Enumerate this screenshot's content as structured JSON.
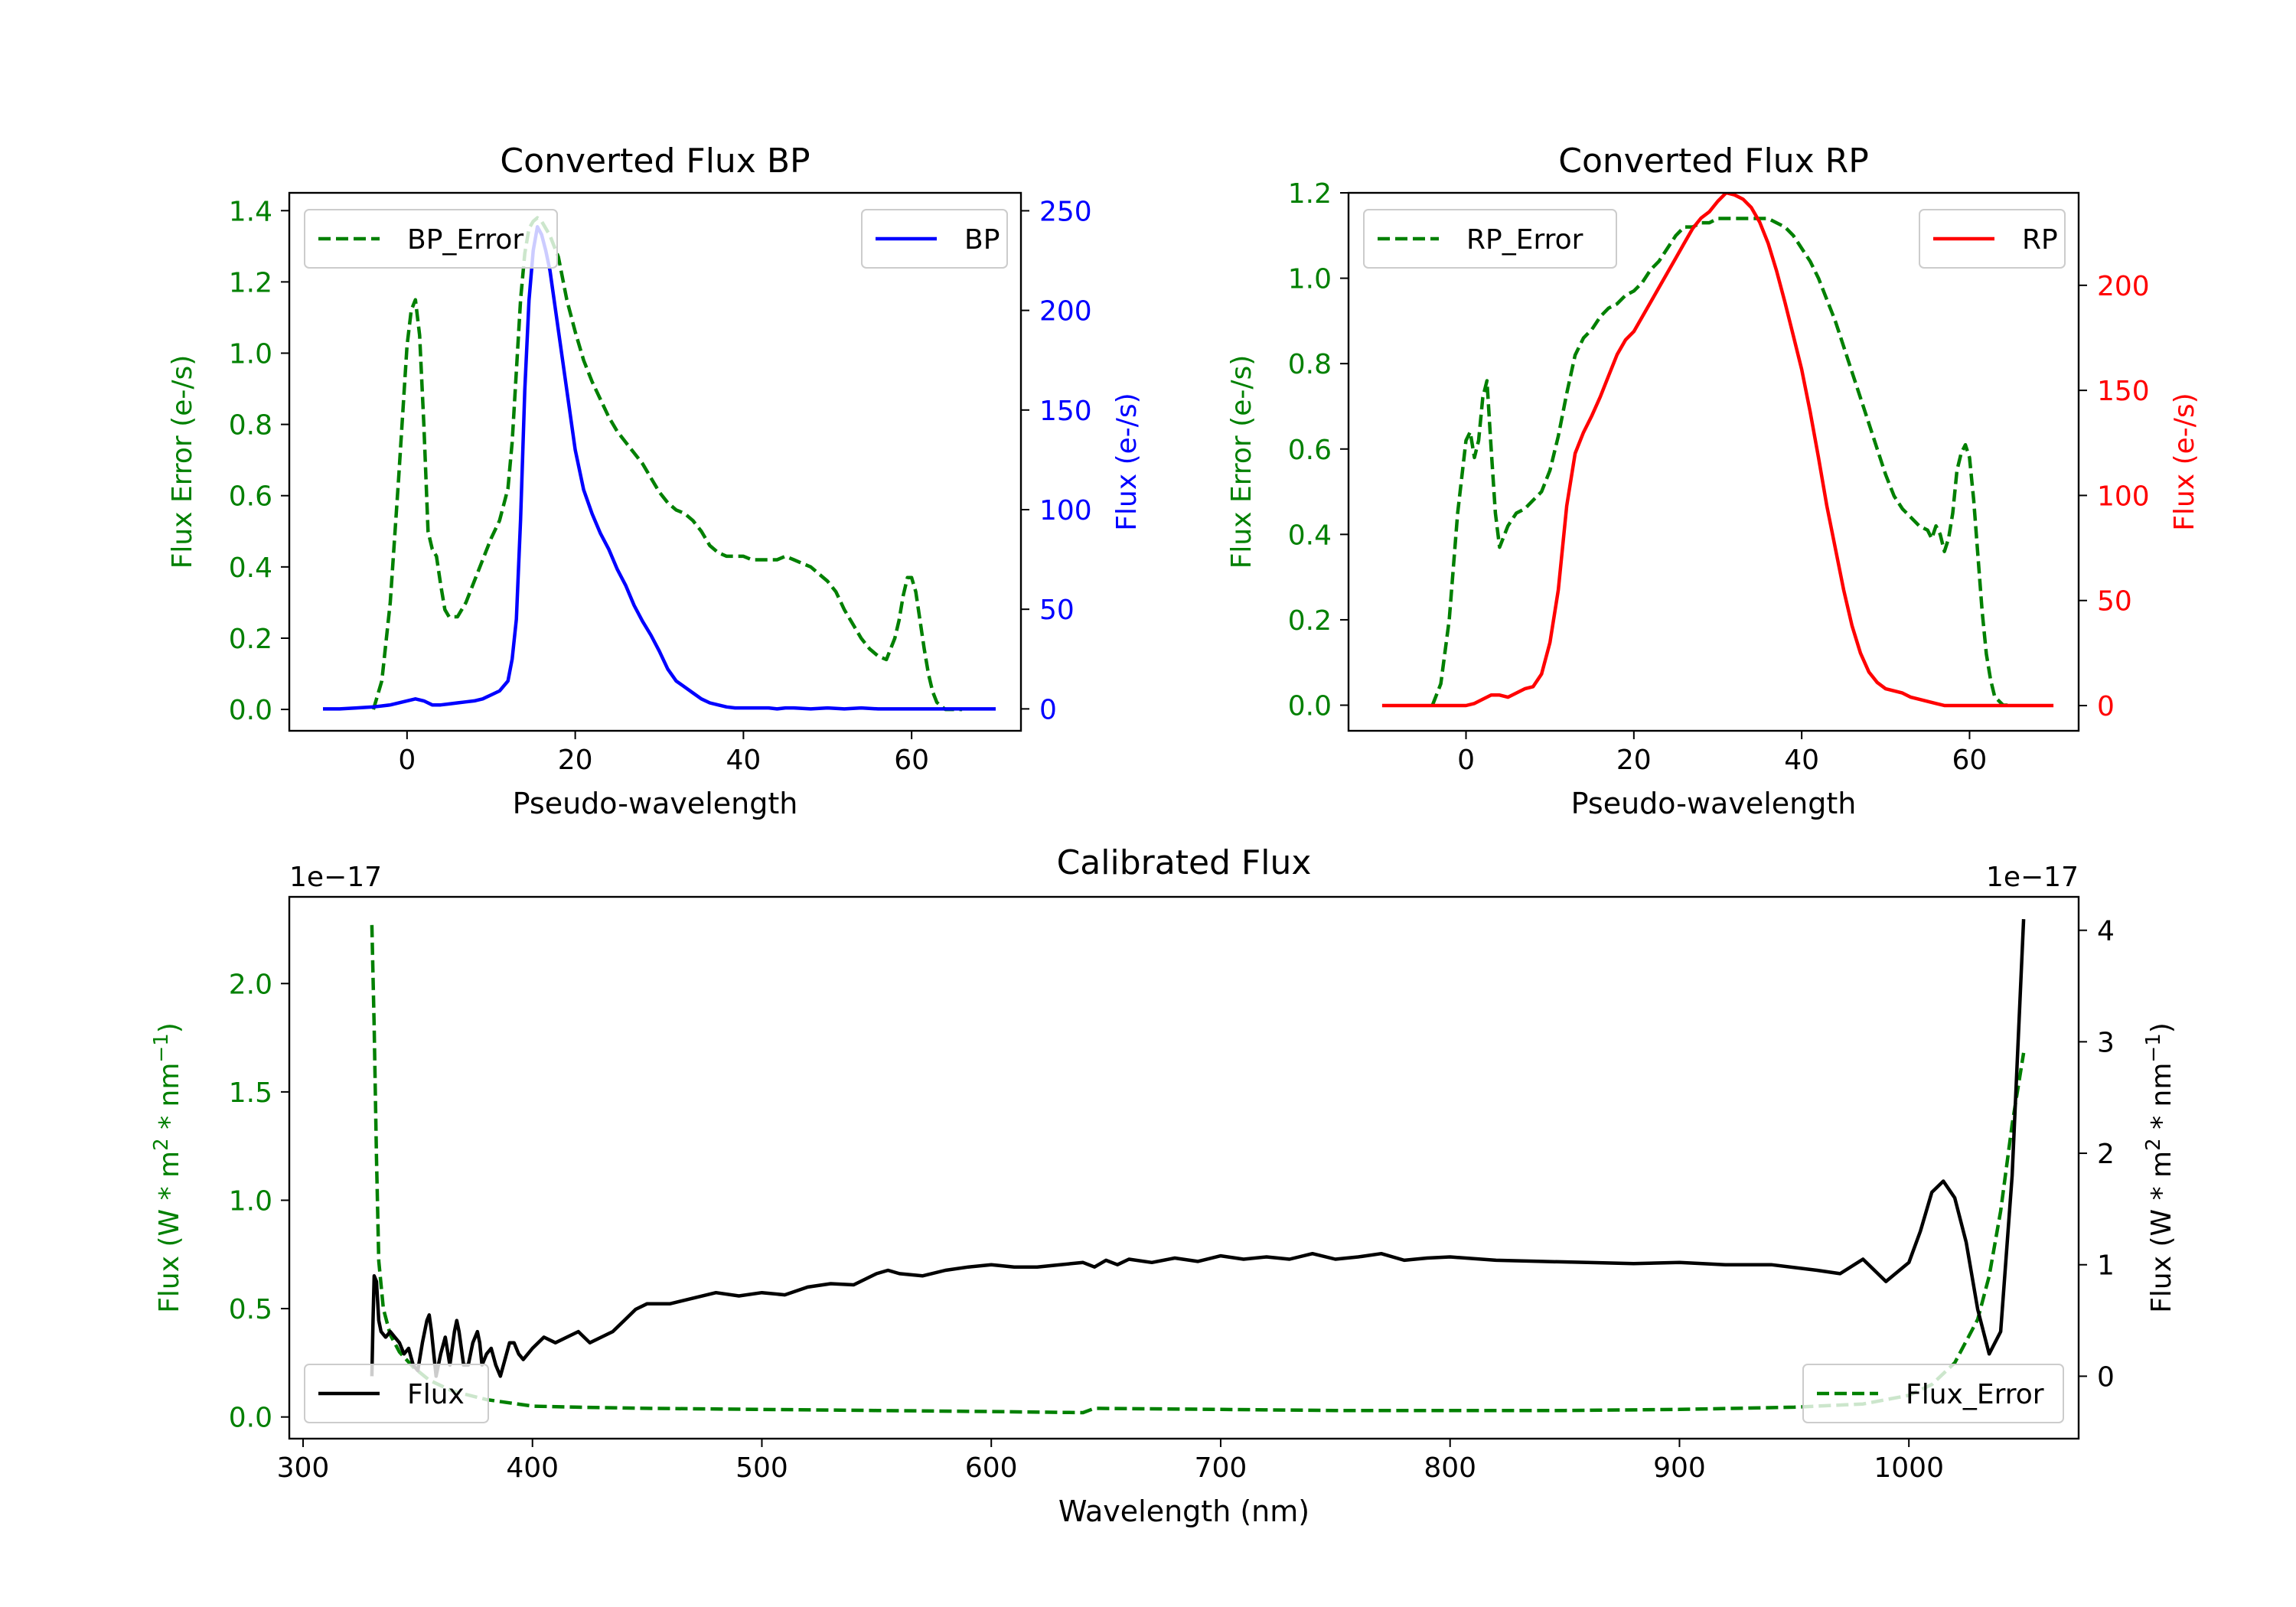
{
  "colors": {
    "green": "#008000",
    "blue": "#0000ff",
    "red": "#ff0000",
    "black": "#000000"
  },
  "chart_data": [
    {
      "type": "line",
      "title": "Converted Flux BP",
      "xlabel": "Pseudo-wavelength",
      "ylabel_left": "Flux Error (e-/s)",
      "ylabel_right": "Flux (e-/s)",
      "xlim": [
        -14,
        73
      ],
      "ylim_left": [
        -0.06,
        1.45
      ],
      "ylim_right": [
        -11,
        259
      ],
      "xticks": [
        0,
        20,
        40,
        60
      ],
      "yticks_left": [
        0.0,
        0.2,
        0.4,
        0.6,
        0.8,
        1.0,
        1.2,
        1.4
      ],
      "yticks_right": [
        0,
        50,
        100,
        150,
        200,
        250
      ],
      "legend_left": "BP_Error",
      "legend_right": "BP",
      "series": [
        {
          "name": "BP_Error",
          "axis": "left",
          "style": "dashed",
          "color": "green",
          "x": [
            -4,
            -3,
            -2,
            -1,
            0,
            0.5,
            1,
            1.5,
            2,
            2.5,
            3,
            3.5,
            4,
            4.5,
            5,
            6,
            7,
            8,
            9,
            10,
            11,
            12,
            12.5,
            13,
            13.5,
            14,
            14.5,
            15,
            15.5,
            16,
            17,
            18,
            19,
            20,
            21,
            22,
            23,
            24,
            25,
            26,
            27,
            28,
            29,
            30,
            31,
            32,
            33,
            34,
            35,
            36,
            37,
            38,
            39,
            40,
            41,
            42,
            43,
            44,
            45,
            46,
            47,
            48,
            49,
            50,
            51,
            52,
            53,
            54,
            55,
            56,
            57,
            58,
            58.5,
            59,
            59.5,
            60,
            60.5,
            61,
            61.5,
            62,
            62.5,
            63,
            63.5,
            64,
            65,
            66
          ],
          "y": [
            0.0,
            0.08,
            0.3,
            0.65,
            1.02,
            1.12,
            1.15,
            1.05,
            0.8,
            0.5,
            0.45,
            0.43,
            0.35,
            0.28,
            0.26,
            0.26,
            0.3,
            0.36,
            0.42,
            0.48,
            0.53,
            0.62,
            0.75,
            0.95,
            1.15,
            1.28,
            1.35,
            1.37,
            1.38,
            1.37,
            1.33,
            1.27,
            1.15,
            1.06,
            0.98,
            0.92,
            0.87,
            0.82,
            0.78,
            0.75,
            0.72,
            0.69,
            0.65,
            0.61,
            0.58,
            0.56,
            0.55,
            0.53,
            0.5,
            0.46,
            0.44,
            0.43,
            0.43,
            0.43,
            0.42,
            0.42,
            0.42,
            0.42,
            0.43,
            0.42,
            0.41,
            0.4,
            0.38,
            0.36,
            0.33,
            0.28,
            0.24,
            0.2,
            0.17,
            0.15,
            0.14,
            0.2,
            0.25,
            0.32,
            0.37,
            0.37,
            0.33,
            0.25,
            0.17,
            0.1,
            0.05,
            0.02,
            0.01,
            0.0,
            0.0,
            0.0
          ]
        },
        {
          "name": "BP",
          "axis": "right",
          "style": "solid",
          "color": "blue",
          "x": [
            -10,
            -8,
            -6,
            -4,
            -2,
            0,
            1,
            2,
            3,
            4,
            5,
            6,
            7,
            8,
            9,
            10,
            11,
            12,
            12.5,
            13,
            13.5,
            14,
            14.5,
            15,
            15.5,
            16,
            16.5,
            17,
            17.5,
            18,
            19,
            20,
            21,
            22,
            23,
            24,
            25,
            26,
            27,
            28,
            29,
            30,
            31,
            32,
            33,
            34,
            35,
            36,
            37,
            38,
            39,
            40,
            41,
            42,
            43,
            44,
            45,
            46,
            48,
            50,
            52,
            54,
            56,
            58,
            60,
            62,
            64,
            66,
            68,
            70
          ],
          "y": [
            0,
            0,
            0.5,
            1,
            2,
            4,
            5,
            4,
            2,
            2,
            2.5,
            3,
            3.5,
            4,
            5,
            7,
            9,
            14,
            25,
            45,
            95,
            160,
            205,
            230,
            242,
            238,
            230,
            220,
            205,
            190,
            160,
            130,
            110,
            98,
            88,
            80,
            70,
            62,
            52,
            44,
            37,
            29,
            20,
            14,
            11,
            8,
            5,
            3,
            2,
            1,
            0.5,
            0.5,
            0.5,
            0.5,
            0.5,
            0,
            0.5,
            0.5,
            0,
            0.5,
            0,
            0.5,
            0,
            0,
            0,
            0,
            0,
            0,
            0,
            0
          ]
        }
      ]
    },
    {
      "type": "line",
      "title": "Converted Flux RP",
      "xlabel": "Pseudo-wavelength",
      "ylabel_left": "Flux Error (e-/s)",
      "ylabel_right": "Flux (e-/s)",
      "xlim": [
        -14,
        73
      ],
      "ylim_left": [
        -0.06,
        1.2
      ],
      "ylim_right": [
        -12,
        244
      ],
      "xticks": [
        0,
        20,
        40,
        60
      ],
      "yticks_left": [
        0.0,
        0.2,
        0.4,
        0.6,
        0.8,
        1.0,
        1.2
      ],
      "yticks_right": [
        0,
        50,
        100,
        150,
        200
      ],
      "legend_left": "RP_Error",
      "legend_right": "RP",
      "series": [
        {
          "name": "RP_Error",
          "axis": "left",
          "style": "dashed",
          "color": "green",
          "x": [
            -4,
            -3,
            -2,
            -1,
            0,
            0.5,
            1,
            1.5,
            2,
            2.5,
            3,
            3.5,
            4,
            5,
            6,
            7,
            8,
            9,
            10,
            11,
            12,
            13,
            14,
            15,
            16,
            17,
            18,
            19,
            20,
            21,
            22,
            23,
            24,
            25,
            26,
            27,
            28,
            29,
            30,
            31,
            32,
            33,
            34,
            35,
            36,
            37,
            38,
            39,
            40,
            41,
            42,
            43,
            44,
            45,
            46,
            47,
            48,
            49,
            50,
            51,
            52,
            53,
            54,
            55,
            55.5,
            56,
            56.5,
            57,
            57.5,
            58,
            58.5,
            59,
            59.5,
            60,
            60.5,
            61,
            61.5,
            62,
            62.5,
            63,
            64,
            65
          ],
          "y": [
            0.0,
            0.05,
            0.2,
            0.45,
            0.62,
            0.64,
            0.58,
            0.62,
            0.72,
            0.76,
            0.6,
            0.45,
            0.37,
            0.42,
            0.45,
            0.46,
            0.48,
            0.5,
            0.55,
            0.63,
            0.73,
            0.82,
            0.86,
            0.88,
            0.91,
            0.93,
            0.94,
            0.96,
            0.97,
            0.99,
            1.02,
            1.04,
            1.07,
            1.1,
            1.12,
            1.12,
            1.13,
            1.13,
            1.14,
            1.14,
            1.14,
            1.14,
            1.14,
            1.14,
            1.14,
            1.13,
            1.12,
            1.1,
            1.07,
            1.04,
            1.0,
            0.95,
            0.9,
            0.84,
            0.78,
            0.72,
            0.66,
            0.6,
            0.54,
            0.49,
            0.46,
            0.44,
            0.42,
            0.41,
            0.39,
            0.42,
            0.4,
            0.36,
            0.39,
            0.45,
            0.55,
            0.59,
            0.61,
            0.58,
            0.48,
            0.35,
            0.22,
            0.12,
            0.06,
            0.02,
            0.0,
            0.0
          ]
        },
        {
          "name": "RP",
          "axis": "right",
          "style": "solid",
          "color": "red",
          "x": [
            -10,
            -8,
            -6,
            -4,
            -2,
            0,
            1,
            2,
            3,
            4,
            5,
            6,
            7,
            8,
            9,
            10,
            11,
            12,
            13,
            14,
            15,
            16,
            17,
            18,
            19,
            20,
            21,
            22,
            23,
            24,
            25,
            26,
            27,
            28,
            29,
            30,
            31,
            32,
            33,
            34,
            35,
            36,
            37,
            38,
            39,
            40,
            41,
            42,
            43,
            44,
            45,
            46,
            47,
            48,
            49,
            50,
            51,
            52,
            53,
            54,
            55,
            56,
            57,
            58,
            59,
            60,
            62,
            64,
            66,
            68,
            70
          ],
          "y": [
            0,
            0,
            0,
            0,
            0,
            0,
            1,
            3,
            5,
            5,
            4,
            6,
            8,
            9,
            15,
            30,
            55,
            95,
            120,
            130,
            138,
            147,
            157,
            167,
            174,
            178,
            185,
            192,
            199,
            206,
            213,
            220,
            227,
            232,
            235,
            240,
            244,
            243,
            241,
            237,
            230,
            220,
            207,
            192,
            176,
            160,
            140,
            118,
            95,
            75,
            55,
            38,
            25,
            16,
            11,
            8,
            7,
            6,
            4,
            3,
            2,
            1,
            0,
            0,
            0,
            0,
            0,
            0,
            0,
            0,
            0
          ]
        }
      ]
    },
    {
      "type": "line",
      "title": "Calibrated Flux",
      "xlabel": "Wavelength (nm)",
      "ylabel_left_main": "Flux (W * m",
      "ylabel_left_sup": "2",
      "ylabel_left_mid": " * nm",
      "ylabel_left_sup2": "−1",
      "ylabel_left_end": ")",
      "ylabel_right_main": "Flux (W * m",
      "ylabel_right_sup": "2",
      "ylabel_right_mid": " * nm",
      "ylabel_right_sup2": "−1",
      "ylabel_right_end": ")",
      "offset_left": "1e−17",
      "offset_right": "1e−17",
      "xlim": [
        294,
        1074
      ],
      "ylim_left": [
        -0.1,
        2.4
      ],
      "ylim_right": [
        -0.56,
        4.3
      ],
      "xticks": [
        300,
        400,
        500,
        600,
        700,
        800,
        900,
        1000
      ],
      "yticks_left": [
        0.0,
        0.5,
        1.0,
        1.5,
        2.0
      ],
      "yticks_left_labels": [
        "0.0",
        "0.5",
        "1.0",
        "1.5",
        "2.0"
      ],
      "yticks_right": [
        0,
        1,
        2,
        3,
        4
      ],
      "legend_left": "Flux",
      "legend_right": "Flux_Error",
      "series": [
        {
          "name": "Flux_Error",
          "axis": "left",
          "style": "dashed",
          "color": "green",
          "x": [
            330,
            331,
            332,
            333,
            335,
            338,
            342,
            348,
            355,
            365,
            380,
            400,
            420,
            450,
            500,
            550,
            600,
            640,
            645,
            700,
            750,
            800,
            850,
            900,
            950,
            980,
            1000,
            1010,
            1020,
            1030,
            1035,
            1040,
            1045,
            1050
          ],
          "y": [
            2.27,
            1.8,
            1.2,
            0.72,
            0.5,
            0.38,
            0.3,
            0.23,
            0.17,
            0.12,
            0.08,
            0.05,
            0.045,
            0.04,
            0.035,
            0.03,
            0.025,
            0.02,
            0.04,
            0.035,
            0.03,
            0.03,
            0.03,
            0.035,
            0.045,
            0.06,
            0.1,
            0.15,
            0.25,
            0.45,
            0.65,
            0.95,
            1.35,
            1.68
          ]
        },
        {
          "name": "Flux",
          "axis": "right",
          "style": "solid",
          "color": "black",
          "x": [
            330,
            330.5,
            331,
            332,
            333,
            334,
            336,
            338,
            340,
            342,
            344,
            346,
            348,
            350,
            352,
            354,
            355,
            356,
            358,
            360,
            362,
            364,
            366,
            367,
            368,
            370,
            372,
            374,
            376,
            377,
            378,
            380,
            382,
            384,
            386,
            388,
            390,
            392,
            394,
            396,
            398,
            400,
            405,
            410,
            415,
            420,
            425,
            430,
            435,
            440,
            445,
            450,
            460,
            470,
            480,
            490,
            500,
            510,
            520,
            530,
            540,
            550,
            555,
            560,
            570,
            580,
            590,
            600,
            610,
            620,
            630,
            640,
            645,
            650,
            655,
            660,
            670,
            680,
            690,
            700,
            710,
            720,
            730,
            740,
            750,
            760,
            770,
            780,
            790,
            800,
            820,
            840,
            860,
            880,
            900,
            920,
            940,
            960,
            970,
            980,
            990,
            1000,
            1005,
            1010,
            1015,
            1020,
            1025,
            1030,
            1035,
            1040,
            1045,
            1050
          ],
          "y": [
            0.0,
            0.5,
            0.9,
            0.85,
            0.5,
            0.4,
            0.35,
            0.4,
            0.35,
            0.3,
            0.2,
            0.25,
            0.1,
            0.05,
            0.3,
            0.5,
            0.55,
            0.4,
            0.0,
            0.2,
            0.35,
            0.1,
            0.4,
            0.5,
            0.4,
            0.1,
            0.1,
            0.3,
            0.4,
            0.3,
            0.1,
            0.2,
            0.25,
            0.1,
            0.0,
            0.15,
            0.3,
            0.3,
            0.2,
            0.15,
            0.2,
            0.25,
            0.35,
            0.3,
            0.35,
            0.4,
            0.3,
            0.35,
            0.4,
            0.5,
            0.6,
            0.65,
            0.65,
            0.7,
            0.75,
            0.72,
            0.75,
            0.73,
            0.8,
            0.83,
            0.82,
            0.92,
            0.95,
            0.92,
            0.9,
            0.95,
            0.98,
            1.0,
            0.98,
            0.98,
            1.0,
            1.02,
            0.98,
            1.04,
            1.0,
            1.05,
            1.02,
            1.06,
            1.03,
            1.08,
            1.05,
            1.07,
            1.05,
            1.1,
            1.05,
            1.07,
            1.1,
            1.04,
            1.06,
            1.07,
            1.04,
            1.03,
            1.02,
            1.01,
            1.02,
            1.0,
            1.0,
            0.95,
            0.92,
            1.05,
            0.85,
            1.02,
            1.3,
            1.65,
            1.75,
            1.6,
            1.2,
            0.6,
            0.2,
            0.4,
            1.8,
            4.1
          ]
        }
      ]
    }
  ]
}
